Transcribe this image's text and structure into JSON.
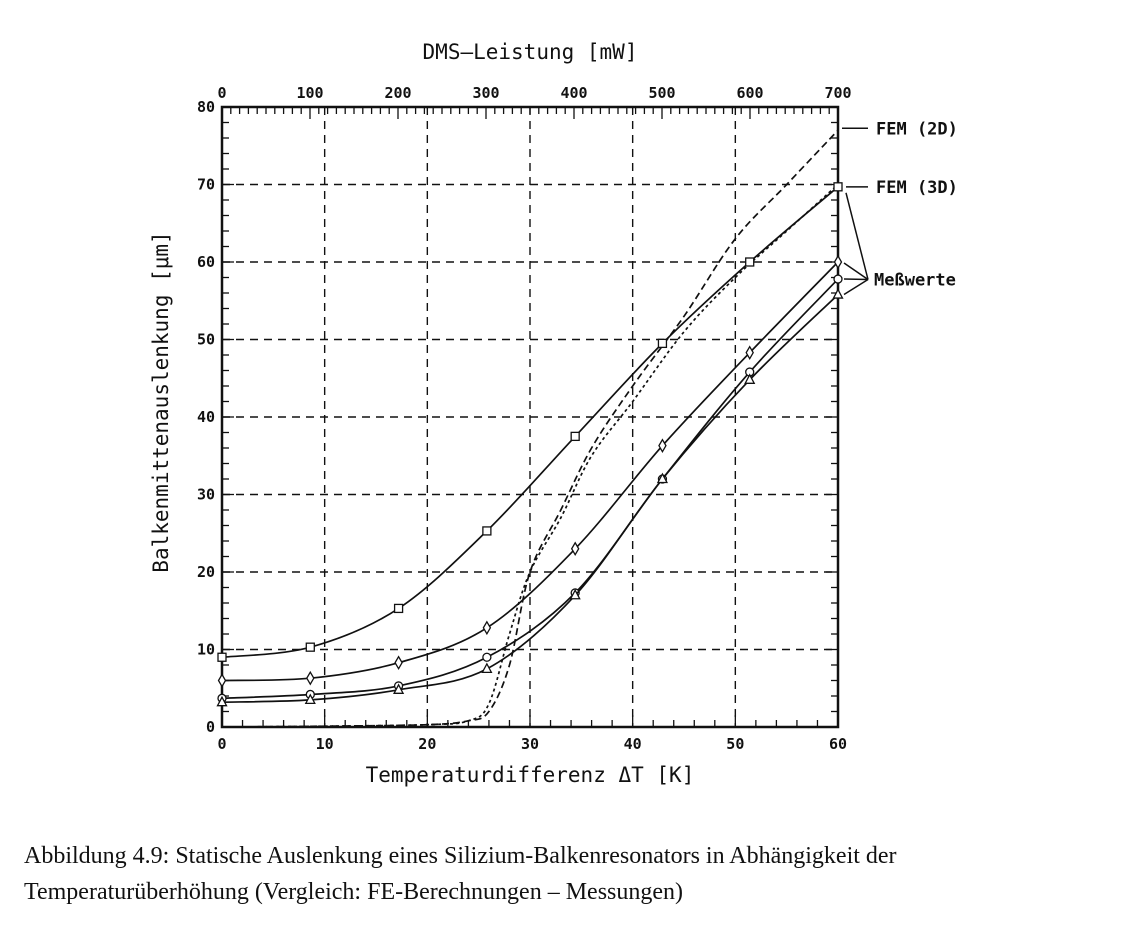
{
  "caption": {
    "line1": "Abbildung 4.9: Statische Auslenkung eines Silizium-Balkenresonators in Abhängigkeit der",
    "line2": "Temperaturüberhöhung (Vergleich: FE-Berechnungen – Messungen)"
  },
  "chart_data": {
    "type": "line",
    "xlabel": "Temperaturdifferenz ΔT [K]",
    "ylabel": "Balkenmittenauslenkung [μm]",
    "x2label": "DMS–Leistung [mW]",
    "xlim": [
      0,
      60
    ],
    "ylim": [
      0,
      80
    ],
    "x2lim": [
      0,
      700
    ],
    "xticks": [
      0,
      10,
      20,
      30,
      40,
      50,
      60
    ],
    "yticks": [
      0,
      10,
      20,
      30,
      40,
      50,
      60,
      70,
      80
    ],
    "x2ticks": [
      0,
      100,
      200,
      300,
      400,
      500,
      600,
      700
    ],
    "grid": true,
    "series": [
      {
        "name": "FEM (2D)",
        "style": "dashed",
        "x": [
          0,
          10,
          20,
          24,
          26,
          28,
          30,
          33,
          36,
          40,
          45,
          50,
          55,
          60
        ],
        "y": [
          0,
          0.1,
          0.3,
          0.8,
          2,
          8,
          20,
          28,
          36,
          44,
          53,
          63,
          70,
          77
        ]
      },
      {
        "name": "FEM (3D)",
        "style": "dotted",
        "x": [
          0,
          10,
          20,
          24,
          26,
          28,
          30,
          33,
          36,
          40,
          45,
          50,
          55,
          60
        ],
        "y": [
          0,
          0.1,
          0.3,
          0.8,
          3,
          12,
          20,
          27,
          35,
          42,
          51,
          58,
          64,
          70
        ]
      },
      {
        "name": "",
        "marker": "square",
        "x": [
          0,
          8.6,
          17.2,
          25.8,
          34.4,
          42.9,
          51.4,
          60
        ],
        "y": [
          9,
          10.3,
          15.3,
          25.3,
          37.5,
          49.5,
          60,
          69.7
        ]
      },
      {
        "name": "",
        "marker": "diamond",
        "x": [
          0,
          8.6,
          17.2,
          25.8,
          34.4,
          42.9,
          51.4,
          60
        ],
        "y": [
          6,
          6.3,
          8.3,
          12.8,
          23,
          36.3,
          48.3,
          60
        ]
      },
      {
        "name": "",
        "marker": "circle",
        "x": [
          0,
          8.6,
          17.2,
          25.8,
          34.4,
          42.9,
          51.4,
          60
        ],
        "y": [
          3.7,
          4.2,
          5.3,
          9,
          17.3,
          32,
          45.8,
          57.8
        ]
      },
      {
        "name": "",
        "marker": "triangle",
        "x": [
          0,
          8.6,
          17.2,
          25.8,
          34.4,
          42.9,
          51.4,
          60
        ],
        "y": [
          3.2,
          3.5,
          4.8,
          7.5,
          17,
          32,
          44.8,
          55.8
        ]
      }
    ],
    "annotations": [
      {
        "text": "FEM (2D)",
        "target_x": 60,
        "target_y": 77
      },
      {
        "text": "FEM (3D)",
        "target_x": 60,
        "target_y": 69.7
      },
      {
        "text": "Meßwerte",
        "target_x": 60,
        "target_y": 58
      }
    ]
  }
}
